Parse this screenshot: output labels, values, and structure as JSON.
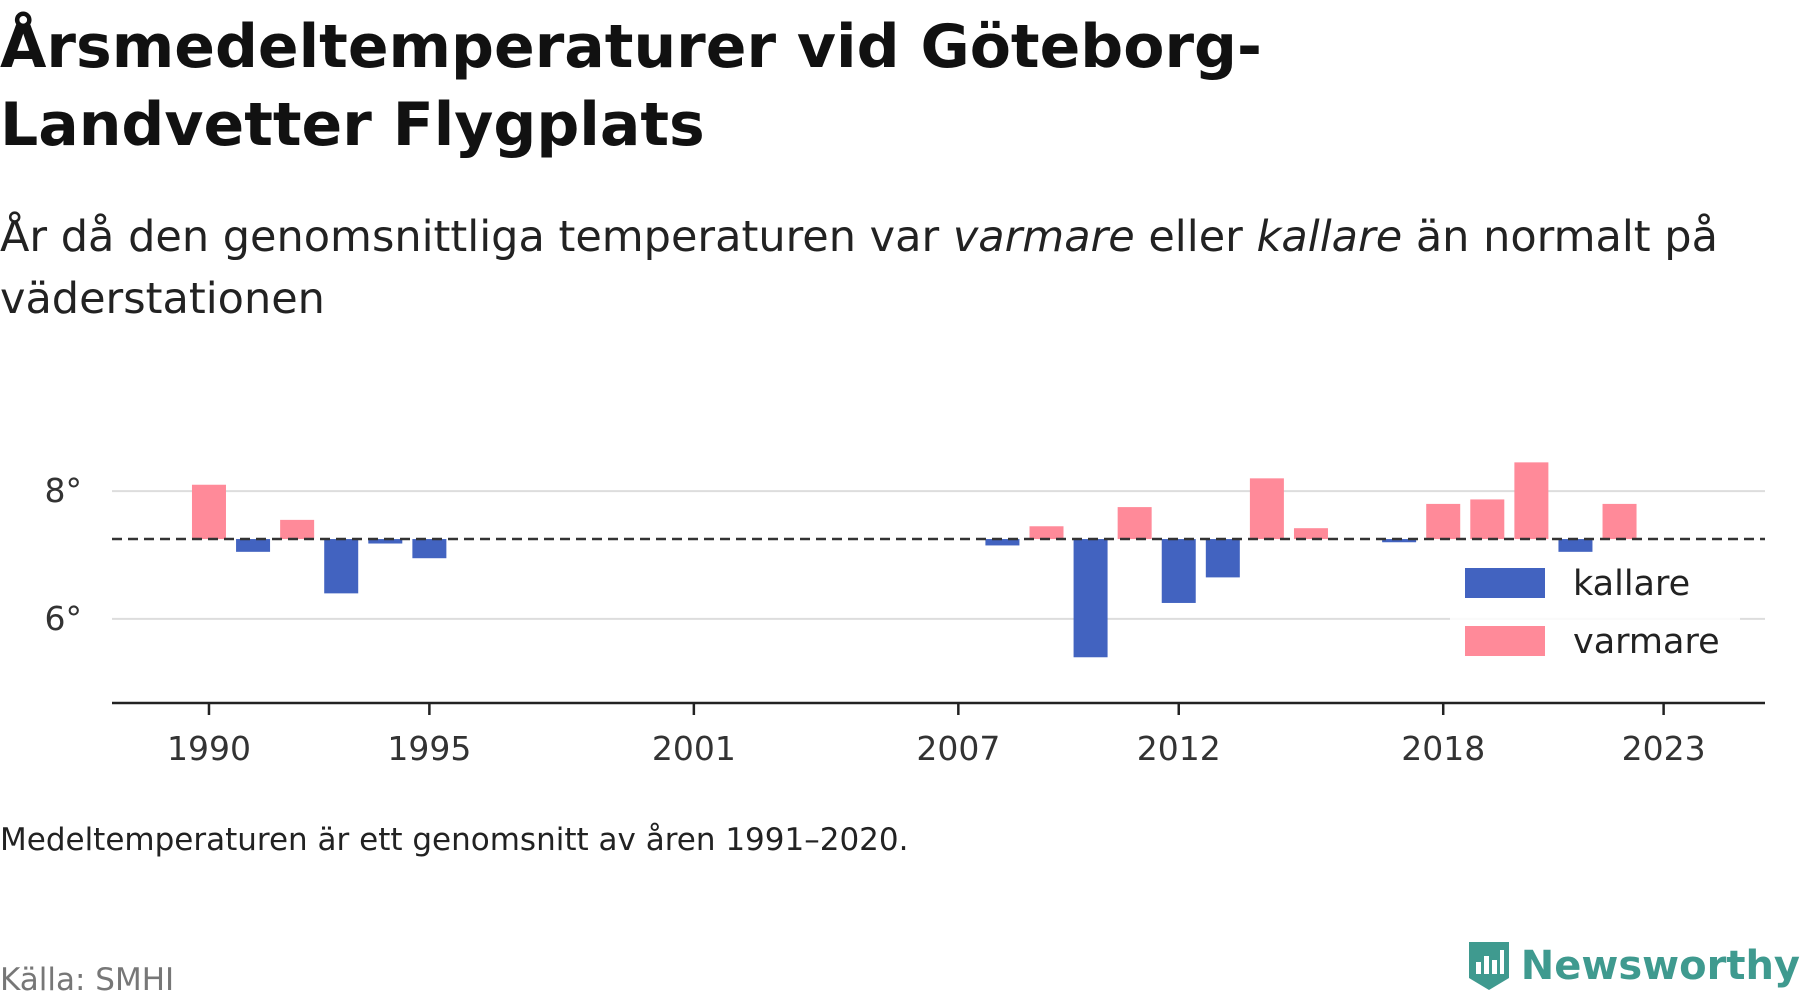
{
  "title": "Årsmedeltemperaturer vid Göteborg-Landvetter Flygplats",
  "subtitle": {
    "part1": "År då den genomsnittliga temperaturen var ",
    "em1": "varmare",
    "part2": " eller ",
    "em2": "kallare",
    "part3": " än normalt på väderstationen"
  },
  "note": "Medeltemperaturen är ett genomsnitt av åren 1991–2020.",
  "source": "Källa: SMHI",
  "brand": {
    "name": "Newsworthy",
    "icon": "newsworthy-logo-icon",
    "color": "#3f9a8f"
  },
  "colors": {
    "kallare": "#4263c0",
    "varmare": "#ff8a99",
    "axis": "#222222",
    "grid": "#dddddd",
    "baseline": "#333333"
  },
  "chart_data": {
    "type": "bar",
    "baseline": 7.25,
    "ylim": [
      4.7,
      8.8
    ],
    "y_ticks": [
      6,
      8
    ],
    "y_tick_labels": [
      "6°",
      "8°"
    ],
    "x_ticks": [
      1990,
      1995,
      2001,
      2007,
      2012,
      2018,
      2023
    ],
    "x_range": [
      1987.8,
      2025.3
    ],
    "grid": true,
    "legend": {
      "position": "right",
      "entries": [
        "kallare",
        "varmare"
      ]
    },
    "series": [
      {
        "name": "kallare",
        "points": [
          [
            1991,
            7.05
          ],
          [
            1993,
            6.4
          ],
          [
            1994,
            7.18
          ],
          [
            1995,
            6.95
          ],
          [
            2008,
            7.15
          ],
          [
            2010,
            5.4
          ],
          [
            2012,
            6.25
          ],
          [
            2013,
            6.65
          ],
          [
            2017,
            7.2
          ],
          [
            2021,
            7.05
          ]
        ]
      },
      {
        "name": "varmare",
        "points": [
          [
            1990,
            8.1
          ],
          [
            1992,
            7.55
          ],
          [
            2009,
            7.45
          ],
          [
            2011,
            7.75
          ],
          [
            2014,
            8.2
          ],
          [
            2015,
            7.42
          ],
          [
            2018,
            7.8
          ],
          [
            2019,
            7.87
          ],
          [
            2020,
            8.45
          ],
          [
            2022,
            7.8
          ]
        ]
      }
    ]
  }
}
